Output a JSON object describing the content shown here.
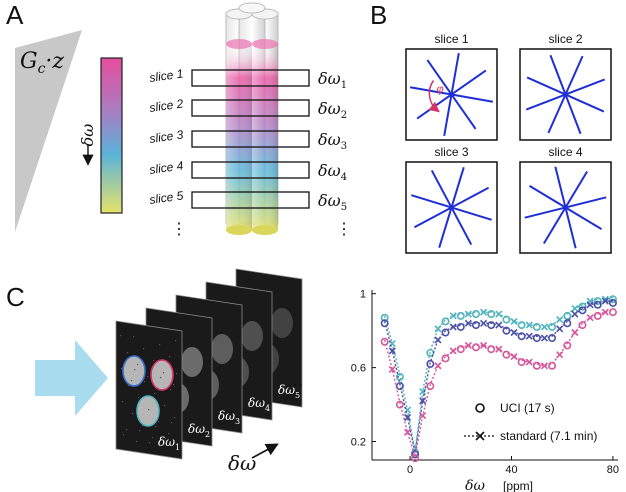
{
  "panels": {
    "a": "A",
    "b": "B",
    "c": "C"
  },
  "panel_a": {
    "gradient_label": "G",
    "gradient_sub": "c",
    "gradient_rest": "·z",
    "colorbar_label": "δω",
    "slices": [
      "slice 1",
      "slice 2",
      "slice 3",
      "slice 4",
      "slice 5"
    ],
    "freqs": [
      {
        "sym": "δω",
        "sub": "1"
      },
      {
        "sym": "δω",
        "sub": "2"
      },
      {
        "sym": "δω",
        "sub": "3"
      },
      {
        "sym": "δω",
        "sub": "4"
      },
      {
        "sym": "δω",
        "sub": "5"
      }
    ],
    "ellipsis": "⋮",
    "colors": {
      "top": "#e64d9c",
      "mid1": "#a77ec3",
      "mid2": "#5ab3d9",
      "bottom": "#e6e36a"
    }
  },
  "panel_b": {
    "titles": [
      "slice 1",
      "slice 2",
      "slice 3",
      "slice 4"
    ],
    "angle_label": "φ",
    "spoke_color": "#1f2fd6",
    "arrow_color": "#d6336c"
  },
  "panel_c": {
    "image_labels": [
      {
        "sym": "δω",
        "sub": "1"
      },
      {
        "sym": "δω",
        "sub": "2"
      },
      {
        "sym": "δω",
        "sub": "3"
      },
      {
        "sym": "δω",
        "sub": "4"
      },
      {
        "sym": "δω",
        "sub": "5"
      }
    ],
    "more": "…",
    "axis_label": "δω",
    "arrow_color": "#a9dcef",
    "roi_colors": [
      "#3a6fd1",
      "#d6336c",
      "#4fb4be"
    ]
  },
  "chart_data": {
    "type": "line",
    "xlabel": "δω",
    "xunit": "[ppm]",
    "xlim": [
      -15,
      82
    ],
    "ylim": [
      0.1,
      1.02
    ],
    "xticks": [
      0,
      40,
      80
    ],
    "yticks": [
      0.2,
      0.6,
      1
    ],
    "x": [
      -10,
      -7,
      -4,
      -1,
      2,
      5,
      8,
      11,
      14,
      17,
      20,
      23,
      26,
      29,
      32,
      35,
      38,
      41,
      44,
      47,
      50,
      53,
      56,
      59,
      62,
      65,
      68,
      71,
      74,
      77,
      80
    ],
    "series": [
      {
        "color": "#4fb4be",
        "values": [
          0.87,
          0.72,
          0.55,
          0.36,
          0.14,
          0.46,
          0.68,
          0.8,
          0.85,
          0.87,
          0.88,
          0.88,
          0.89,
          0.89,
          0.89,
          0.88,
          0.86,
          0.84,
          0.83,
          0.82,
          0.82,
          0.81,
          0.82,
          0.85,
          0.88,
          0.91,
          0.93,
          0.95,
          0.96,
          0.96,
          0.97
        ]
      },
      {
        "color": "#4a4fa8",
        "values": [
          0.84,
          0.68,
          0.5,
          0.32,
          0.13,
          0.41,
          0.62,
          0.74,
          0.79,
          0.81,
          0.82,
          0.83,
          0.83,
          0.83,
          0.83,
          0.82,
          0.8,
          0.78,
          0.77,
          0.76,
          0.76,
          0.75,
          0.76,
          0.8,
          0.84,
          0.88,
          0.91,
          0.93,
          0.94,
          0.95,
          0.95
        ]
      },
      {
        "color": "#d6569c",
        "values": [
          0.74,
          0.58,
          0.4,
          0.24,
          0.11,
          0.33,
          0.5,
          0.6,
          0.65,
          0.68,
          0.7,
          0.71,
          0.71,
          0.71,
          0.7,
          0.69,
          0.67,
          0.65,
          0.63,
          0.62,
          0.61,
          0.6,
          0.61,
          0.66,
          0.72,
          0.78,
          0.83,
          0.86,
          0.88,
          0.89,
          0.9
        ]
      }
    ],
    "legend": [
      {
        "marker": "o",
        "label": "UCI (17 s)"
      },
      {
        "marker": "x",
        "label": "standard (7.1 min)"
      }
    ],
    "legend_position": "bottom-right",
    "grid": false
  }
}
